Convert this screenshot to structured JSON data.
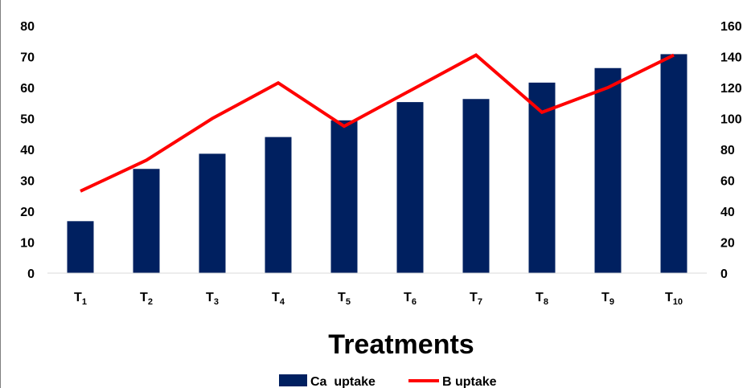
{
  "chart_data": {
    "type": "bar+line",
    "categories": [
      {
        "base": "T",
        "sub": "1"
      },
      {
        "base": "T",
        "sub": "2"
      },
      {
        "base": "T",
        "sub": "3"
      },
      {
        "base": "T",
        "sub": "4"
      },
      {
        "base": "T",
        "sub": "5"
      },
      {
        "base": "T",
        "sub": "6"
      },
      {
        "base": "T",
        "sub": "7"
      },
      {
        "base": "T",
        "sub": "8"
      },
      {
        "base": "T",
        "sub": "9"
      },
      {
        "base": "T",
        "sub": "10"
      }
    ],
    "series": [
      {
        "name": "Ca  uptake",
        "type": "bar",
        "axis": "left",
        "color": "#002060",
        "values": [
          16.8,
          33.7,
          38.6,
          44.0,
          49.4,
          55.3,
          56.3,
          61.6,
          66.3,
          70.8
        ]
      },
      {
        "name": "B uptake",
        "type": "line",
        "axis": "right",
        "color": "#ff0000",
        "values": [
          53,
          73,
          100,
          123,
          95,
          118,
          141,
          104,
          120,
          141
        ]
      }
    ],
    "xlabel": "Treatments",
    "y_left": {
      "min": 0,
      "max": 80,
      "step": 10,
      "ticks": [
        "0",
        "10",
        "20",
        "30",
        "40",
        "50",
        "60",
        "70",
        "80"
      ]
    },
    "y_right": {
      "min": 0,
      "max": 160,
      "step": 20,
      "ticks": [
        "0",
        "20",
        "40",
        "60",
        "80",
        "100",
        "120",
        "140",
        "160"
      ]
    },
    "grid": false,
    "legend": "bottom"
  }
}
